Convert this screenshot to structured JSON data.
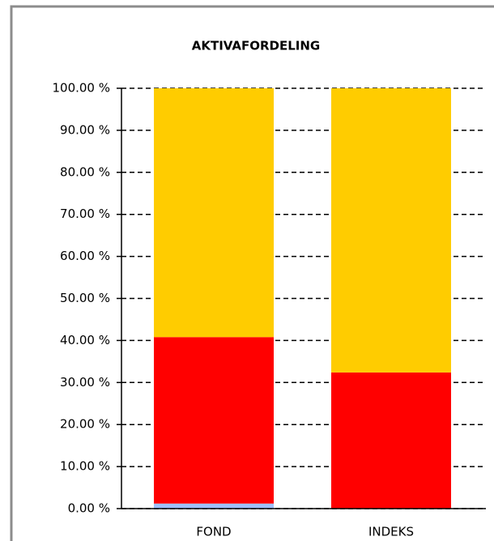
{
  "chart_data": {
    "type": "stacked_bar",
    "title": "AKTIVAFORDELING",
    "categories": [
      "FOND",
      "INDEKS"
    ],
    "series": [
      {
        "color": "#9fbfff",
        "values": [
          1.2,
          0
        ]
      },
      {
        "color": "#ff0000",
        "values": [
          39.6,
          32.4
        ]
      },
      {
        "color": "#ffcc00",
        "values": [
          59.2,
          67.6
        ]
      }
    ],
    "ylim": [
      0,
      100
    ],
    "yticks": [
      {
        "value": 0,
        "label": "0.00 %"
      },
      {
        "value": 10,
        "label": "10.00 %"
      },
      {
        "value": 20,
        "label": "20.00 %"
      },
      {
        "value": 30,
        "label": "30.00 %"
      },
      {
        "value": 40,
        "label": "40.00 %"
      },
      {
        "value": 50,
        "label": "50.00 %"
      },
      {
        "value": 60,
        "label": "60.00 %"
      },
      {
        "value": 70,
        "label": "70.00 %"
      },
      {
        "value": 80,
        "label": "80.00 %"
      },
      {
        "value": 90,
        "label": "90.00 %"
      },
      {
        "value": 100,
        "label": "100.00 %"
      }
    ],
    "grid": true
  }
}
